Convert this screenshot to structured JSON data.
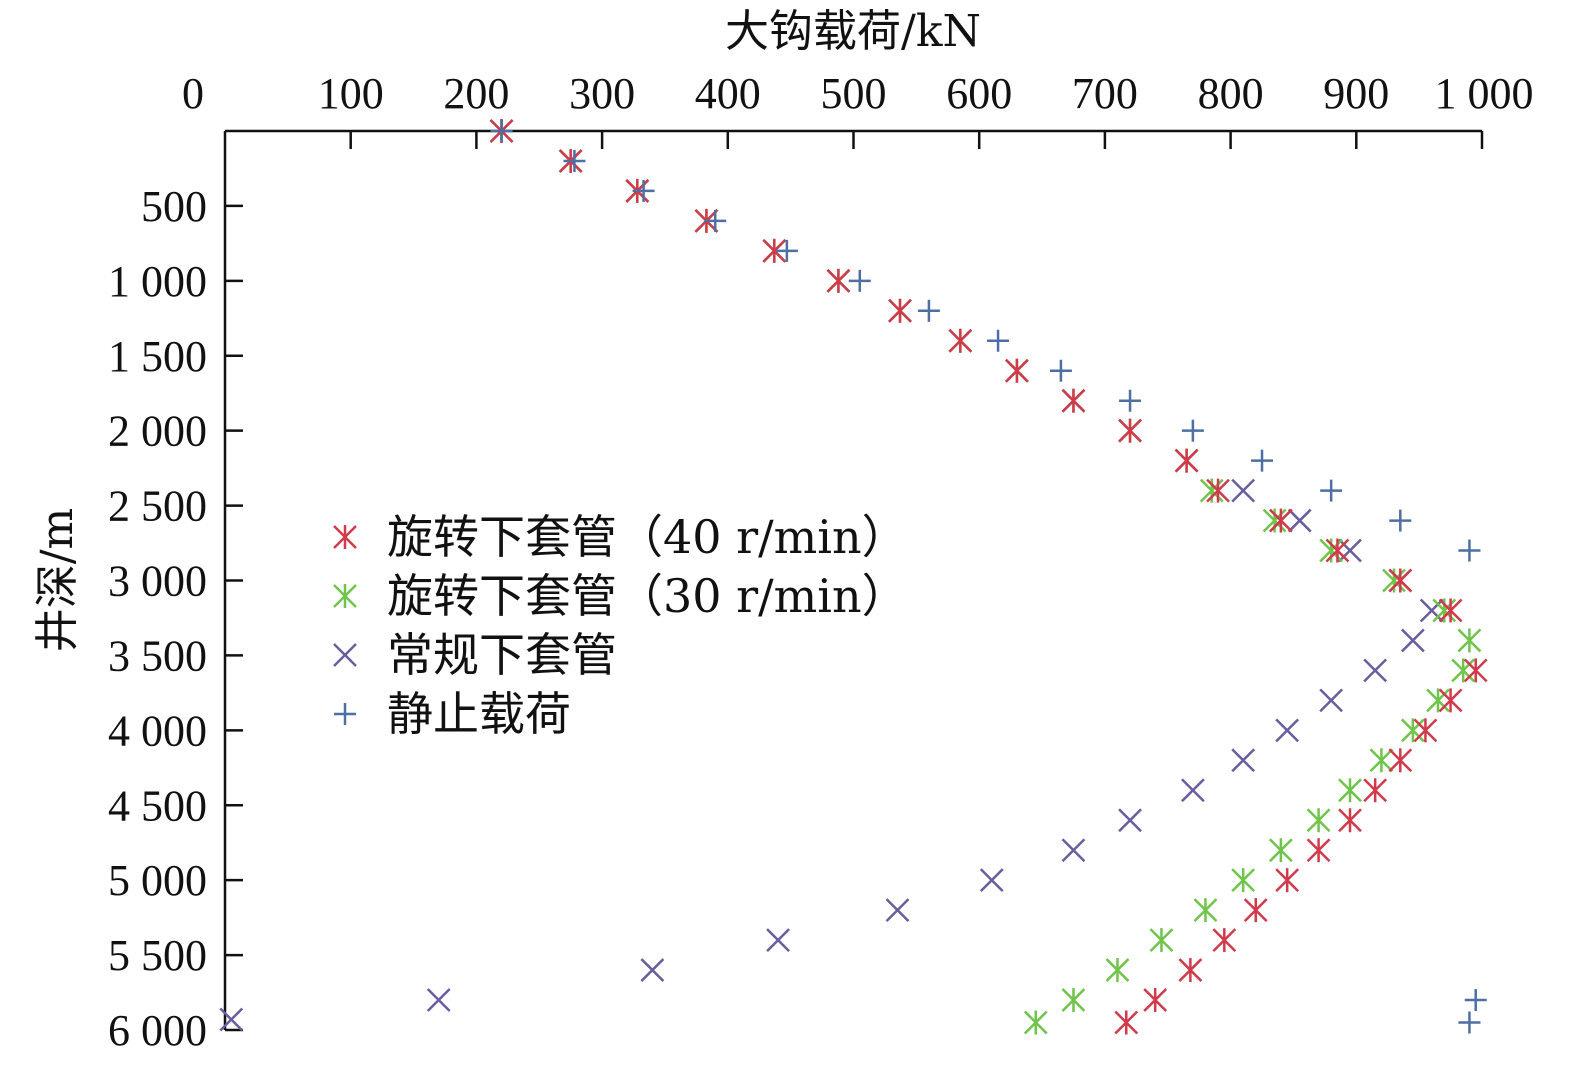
{
  "chart_data": {
    "type": "scatter",
    "xlabel": "大钩载荷/kN",
    "ylabel": "井深/m",
    "xlim": [
      0,
      1000
    ],
    "ylim": [
      0,
      6000
    ],
    "y_reversed": true,
    "x_axis_position": "top",
    "xticks": [
      0,
      100,
      200,
      300,
      400,
      500,
      600,
      700,
      800,
      900,
      1000
    ],
    "xtick_labels": [
      "0",
      "100",
      "200",
      "300",
      "400",
      "500",
      "600",
      "700",
      "800",
      "900",
      "1 000"
    ],
    "yticks": [
      500,
      1000,
      1500,
      2000,
      2500,
      3000,
      3500,
      4000,
      4500,
      5000,
      5500,
      6000
    ],
    "ytick_labels": [
      "500",
      "1 000",
      "1 500",
      "2 000",
      "2 500",
      "3 000",
      "3 500",
      "4 000",
      "4 500",
      "5 000",
      "5 500",
      "6 000"
    ],
    "grid": false,
    "legend_position": "left-middle",
    "series": [
      {
        "name": "旋转下套管（40 r/min）",
        "marker": "asterisk",
        "color": "#d03a4a",
        "points": [
          [
            220,
            0
          ],
          [
            275,
            200
          ],
          [
            328,
            400
          ],
          [
            383,
            600
          ],
          [
            437,
            800
          ],
          [
            488,
            1000
          ],
          [
            537,
            1200
          ],
          [
            585,
            1400
          ],
          [
            630,
            1600
          ],
          [
            675,
            1800
          ],
          [
            720,
            2000
          ],
          [
            765,
            2200
          ],
          [
            790,
            2400
          ],
          [
            840,
            2600
          ],
          [
            885,
            2800
          ],
          [
            935,
            3000
          ],
          [
            975,
            3200
          ],
          [
            995,
            3600
          ],
          [
            975,
            3800
          ],
          [
            955,
            4000
          ],
          [
            935,
            4200
          ],
          [
            915,
            4400
          ],
          [
            895,
            4600
          ],
          [
            870,
            4800
          ],
          [
            845,
            5000
          ],
          [
            820,
            5200
          ],
          [
            795,
            5400
          ],
          [
            768,
            5600
          ],
          [
            740,
            5800
          ],
          [
            717,
            5950
          ]
        ]
      },
      {
        "name": "旋转下套管（30 r/min）",
        "marker": "asterisk",
        "color": "#6fc44a",
        "points": [
          [
            220,
            0
          ],
          [
            275,
            200
          ],
          [
            328,
            400
          ],
          [
            383,
            600
          ],
          [
            437,
            800
          ],
          [
            488,
            1000
          ],
          [
            537,
            1200
          ],
          [
            585,
            1400
          ],
          [
            630,
            1600
          ],
          [
            675,
            1800
          ],
          [
            720,
            2000
          ],
          [
            765,
            2200
          ],
          [
            785,
            2400
          ],
          [
            835,
            2600
          ],
          [
            880,
            2800
          ],
          [
            930,
            3000
          ],
          [
            970,
            3200
          ],
          [
            990,
            3400
          ],
          [
            985,
            3600
          ],
          [
            965,
            3800
          ],
          [
            945,
            4000
          ],
          [
            920,
            4200
          ],
          [
            895,
            4400
          ],
          [
            870,
            4600
          ],
          [
            840,
            4800
          ],
          [
            810,
            5000
          ],
          [
            780,
            5200
          ],
          [
            745,
            5400
          ],
          [
            710,
            5600
          ],
          [
            675,
            5800
          ],
          [
            645,
            5950
          ]
        ]
      },
      {
        "name": "常规下套管",
        "marker": "x",
        "color": "#6a5d9e",
        "points": [
          [
            220,
            0
          ],
          [
            275,
            200
          ],
          [
            328,
            400
          ],
          [
            383,
            600
          ],
          [
            437,
            800
          ],
          [
            488,
            1000
          ],
          [
            537,
            1200
          ],
          [
            585,
            1400
          ],
          [
            630,
            1600
          ],
          [
            675,
            1800
          ],
          [
            720,
            2000
          ],
          [
            765,
            2200
          ],
          [
            810,
            2400
          ],
          [
            855,
            2600
          ],
          [
            895,
            2800
          ],
          [
            935,
            3000
          ],
          [
            960,
            3200
          ],
          [
            945,
            3400
          ],
          [
            915,
            3600
          ],
          [
            880,
            3800
          ],
          [
            845,
            4000
          ],
          [
            810,
            4200
          ],
          [
            770,
            4400
          ],
          [
            720,
            4600
          ],
          [
            675,
            4800
          ],
          [
            610,
            5000
          ],
          [
            535,
            5200
          ],
          [
            440,
            5400
          ],
          [
            340,
            5600
          ],
          [
            170,
            5800
          ],
          [
            5,
            5930
          ]
        ]
      },
      {
        "name": "静止载荷",
        "marker": "plus",
        "color": "#4e6fa3",
        "points": [
          [
            220,
            0
          ],
          [
            278,
            200
          ],
          [
            333,
            400
          ],
          [
            390,
            600
          ],
          [
            447,
            800
          ],
          [
            505,
            1000
          ],
          [
            560,
            1200
          ],
          [
            615,
            1400
          ],
          [
            665,
            1600
          ],
          [
            720,
            1800
          ],
          [
            770,
            2000
          ],
          [
            825,
            2200
          ],
          [
            880,
            2400
          ],
          [
            935,
            2600
          ],
          [
            990,
            2800
          ],
          [
            995,
            5800
          ],
          [
            990,
            5950
          ]
        ]
      }
    ]
  }
}
